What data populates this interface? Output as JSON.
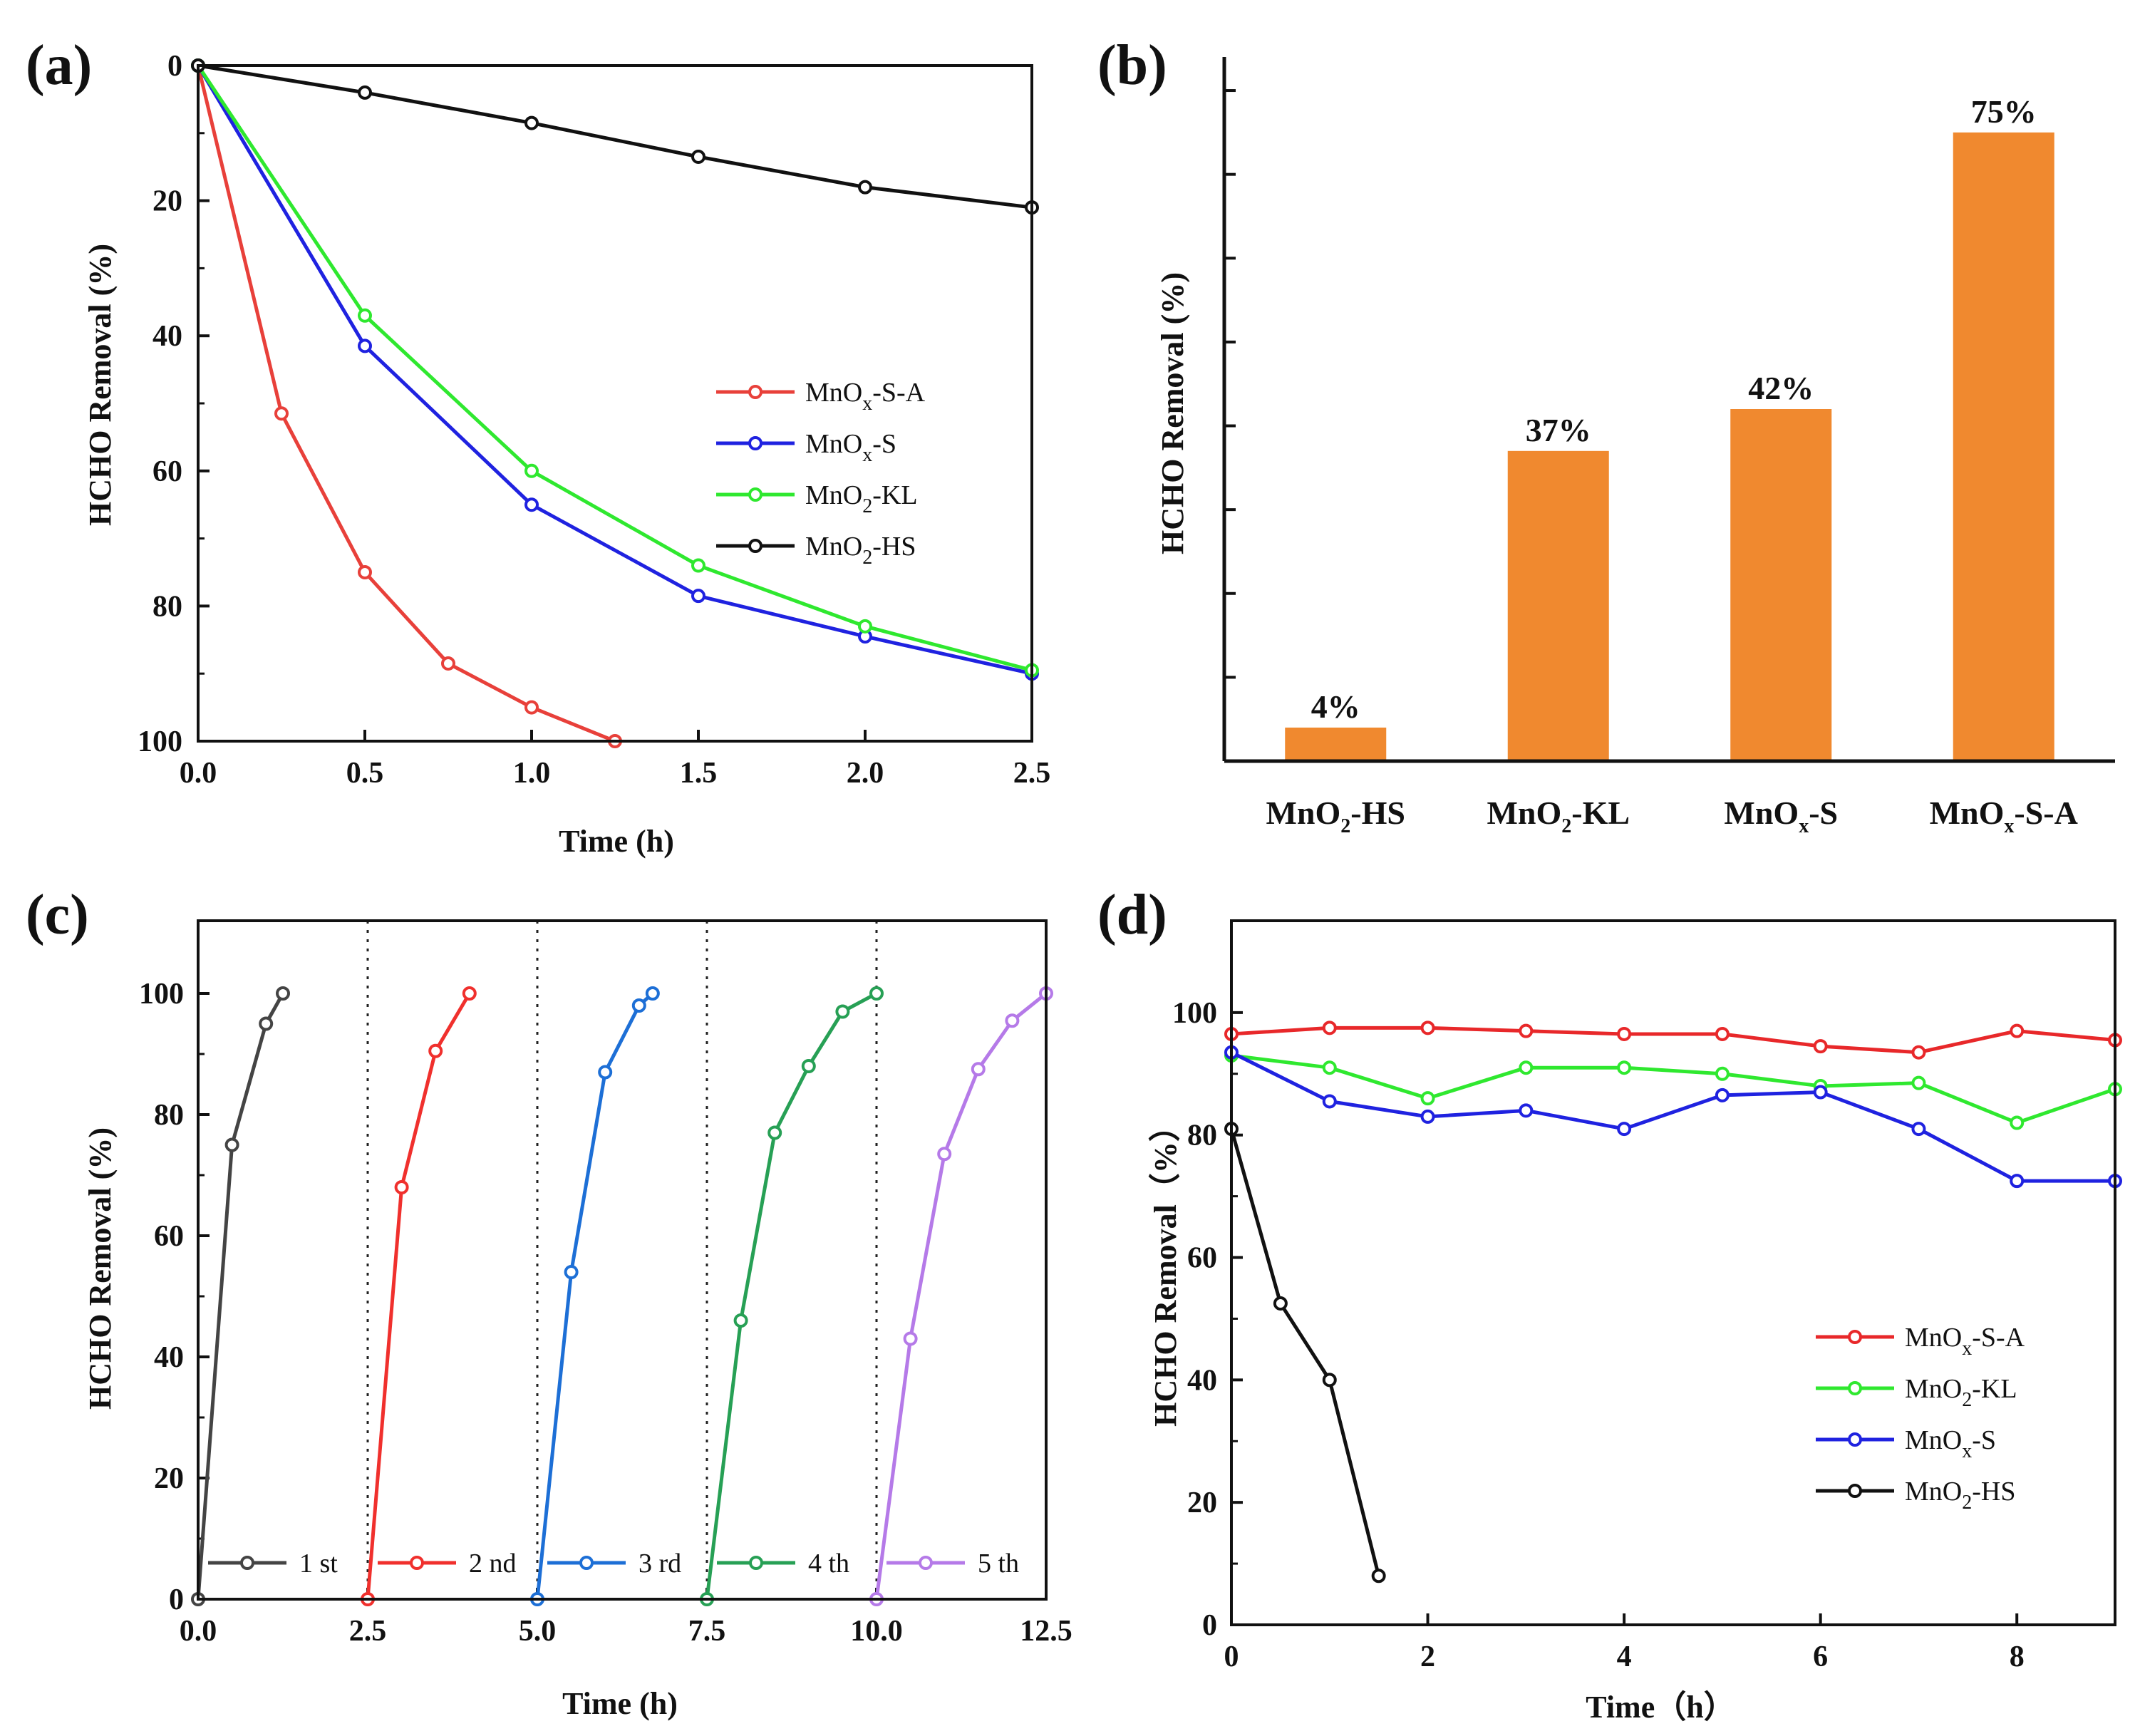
{
  "chart_data": [
    {
      "panel": "(a)",
      "type": "line",
      "xlabel": "Time (h)",
      "ylabel": "HCHO Removal (%)",
      "xlim": [
        0,
        2.5
      ],
      "ylim": [
        0,
        100
      ],
      "y_inverted": true,
      "xticks": [
        "0.0",
        "0.5",
        "1.0",
        "1.5",
        "2.0",
        "2.5"
      ],
      "yticks": [
        "0",
        "20",
        "40",
        "60",
        "80",
        "100"
      ],
      "legend_position": "center-right",
      "series": [
        {
          "name": "MnOx-S-A",
          "name_main": "MnO",
          "name_sub": "x",
          "name_tail": "-S-A",
          "color": "#e8403a",
          "x": [
            0,
            0.25,
            0.5,
            0.75,
            1.0,
            1.25
          ],
          "y": [
            0,
            51.5,
            75,
            88.5,
            95,
            100
          ]
        },
        {
          "name": "MnOx-S",
          "name_main": "MnO",
          "name_sub": "x",
          "name_tail": "-S",
          "color": "#1f22e0",
          "x": [
            0,
            0.5,
            1.0,
            1.5,
            2.0,
            2.5
          ],
          "y": [
            0,
            41.5,
            65,
            78.5,
            84.5,
            90
          ]
        },
        {
          "name": "MnO2-KL",
          "name_main": "MnO",
          "name_sub": "2",
          "name_tail": "-KL",
          "color": "#2fe82f",
          "x": [
            0,
            0.5,
            1.0,
            1.5,
            2.0,
            2.5
          ],
          "y": [
            0,
            37,
            60,
            74,
            83,
            89.5
          ]
        },
        {
          "name": "MnO2-HS",
          "name_main": "MnO",
          "name_sub": "2",
          "name_tail": "-HS",
          "color": "#111111",
          "x": [
            0,
            0.5,
            1.0,
            1.5,
            2.0,
            2.5
          ],
          "y": [
            0,
            4,
            8.5,
            13.5,
            18,
            21
          ]
        }
      ]
    },
    {
      "panel": "(b)",
      "type": "bar",
      "ylabel": "HCHO Removal (%)",
      "ylim": [
        0,
        84
      ],
      "bar_color": "#f0892f",
      "categories": [
        {
          "main": "MnO",
          "sub": "2",
          "tail": "-HS"
        },
        {
          "main": "MnO",
          "sub": "2",
          "tail": "-KL"
        },
        {
          "main": "MnO",
          "sub": "x",
          "tail": "-S"
        },
        {
          "main": "MnO",
          "sub": "x",
          "tail": "-S-A"
        }
      ],
      "values": [
        4,
        37,
        42,
        75
      ],
      "value_labels": [
        "4%",
        "37%",
        "42%",
        "75%"
      ]
    },
    {
      "panel": "(c)",
      "type": "line",
      "xlabel": "Time (h)",
      "ylabel": "HCHO Removal (%)",
      "xlim": [
        0,
        12.5
      ],
      "ylim": [
        0,
        112
      ],
      "xticks": [
        "0.0",
        "2.5",
        "5.0",
        "7.5",
        "10.0",
        "12.5"
      ],
      "yticks": [
        "0",
        "20",
        "40",
        "60",
        "80",
        "100"
      ],
      "dividers_x": [
        2.5,
        5.0,
        7.5,
        10.0
      ],
      "legend_position": "bottom",
      "series": [
        {
          "name": "1 st",
          "color": "#444444",
          "x": [
            0,
            0.5,
            1.0,
            1.25
          ],
          "y": [
            0,
            75,
            95,
            100
          ]
        },
        {
          "name": "2 nd",
          "color": "#f0302d",
          "x": [
            2.5,
            3.0,
            3.5,
            4.0
          ],
          "y": [
            0,
            68,
            90.5,
            100
          ]
        },
        {
          "name": "3 rd",
          "color": "#1d6fd6",
          "x": [
            5.0,
            5.5,
            6.0,
            6.5,
            6.7
          ],
          "y": [
            0,
            54,
            87,
            98,
            100
          ]
        },
        {
          "name": "4 th",
          "color": "#27a055",
          "x": [
            7.5,
            8.0,
            8.5,
            9.0,
            9.5,
            10.0
          ],
          "y": [
            0,
            46,
            77,
            88,
            97,
            100
          ]
        },
        {
          "name": "5 th",
          "color": "#b57ae8",
          "x": [
            10.0,
            10.5,
            11.0,
            11.5,
            12.0,
            12.5
          ],
          "y": [
            0,
            43,
            73.5,
            87.5,
            95.5,
            100
          ]
        }
      ]
    },
    {
      "panel": "(d)",
      "type": "line",
      "xlabel": "Time（h）",
      "ylabel": "HCHO Removal（%）",
      "xlim": [
        0,
        9
      ],
      "ylim": [
        0,
        115
      ],
      "xticks": [
        "0",
        "2",
        "4",
        "6",
        "8"
      ],
      "yticks": [
        "0",
        "20",
        "40",
        "60",
        "80",
        "100"
      ],
      "legend_position": "bottom-right",
      "series": [
        {
          "name": "MnOx-S-A",
          "name_main": "MnO",
          "name_sub": "x",
          "name_tail": "-S-A",
          "color": "#e8282a",
          "x": [
            0,
            1,
            2,
            3,
            4,
            5,
            6,
            7,
            8,
            9
          ],
          "y": [
            96.5,
            97.5,
            97.5,
            97,
            96.5,
            96.5,
            94.5,
            93.5,
            97,
            95.5
          ]
        },
        {
          "name": "MnO2-KL",
          "name_main": "MnO",
          "name_sub": "2",
          "name_tail": "-KL",
          "color": "#2fe82f",
          "x": [
            0,
            1,
            2,
            3,
            4,
            5,
            6,
            7,
            8,
            9
          ],
          "y": [
            93,
            91,
            86,
            91,
            91,
            90,
            88,
            88.5,
            82,
            87.5
          ]
        },
        {
          "name": "MnOx-S",
          "name_main": "MnO",
          "name_sub": "x",
          "name_tail": "-S",
          "color": "#1f22e0",
          "x": [
            0,
            1,
            2,
            3,
            4,
            5,
            6,
            7,
            8,
            9
          ],
          "y": [
            93.5,
            85.5,
            83,
            84,
            81,
            86.5,
            87,
            81,
            72.5,
            72.5
          ]
        },
        {
          "name": "MnO2-HS",
          "name_main": "MnO",
          "name_sub": "2",
          "name_tail": "-HS",
          "color": "#111111",
          "x": [
            0,
            0.5,
            1.0,
            1.5
          ],
          "y": [
            81,
            52.5,
            40,
            8
          ]
        }
      ]
    }
  ]
}
